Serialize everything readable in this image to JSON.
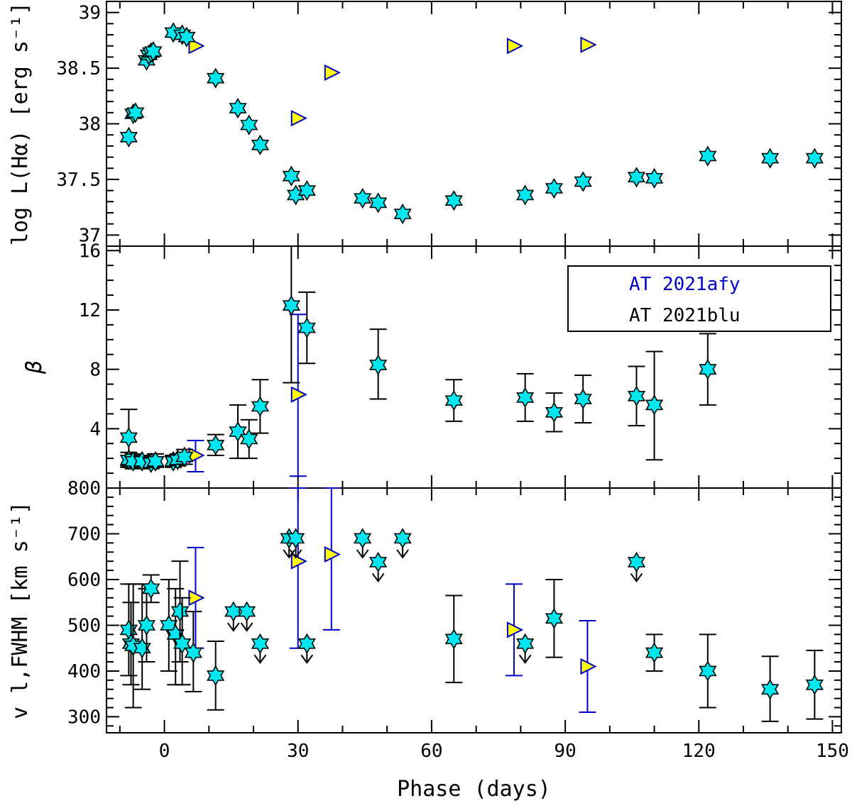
{
  "chart_data": [
    {
      "panel": "top",
      "type": "scatter",
      "ylabel": "log L(Hα) [erg s⁻¹]",
      "ylim": [
        36.9,
        39.1
      ],
      "yticks": [
        37,
        37.5,
        38,
        38.5,
        39
      ],
      "ytick_labels": [
        "37",
        "37.5",
        "38",
        "38.5",
        "39"
      ],
      "series": [
        {
          "name": "AT 2021afy",
          "marker": "triangle-right",
          "points": [
            [
              7,
              38.7
            ],
            [
              30,
              38.05
            ],
            [
              37.5,
              38.46
            ],
            [
              78.5,
              38.7
            ],
            [
              95,
              38.71
            ]
          ]
        },
        {
          "name": "AT 2021blu",
          "marker": "star",
          "points": [
            [
              -8,
              37.88
            ],
            [
              -7,
              38.09
            ],
            [
              -6.5,
              38.1
            ],
            [
              -4,
              38.57
            ],
            [
              -3.5,
              38.62
            ],
            [
              -3,
              38.64
            ],
            [
              -2.5,
              38.65
            ],
            [
              2,
              38.82
            ],
            [
              4,
              38.8
            ],
            [
              5,
              38.78
            ],
            [
              11.5,
              38.41
            ],
            [
              16.5,
              38.14
            ],
            [
              19,
              37.99
            ],
            [
              21.5,
              37.81
            ],
            [
              28.5,
              37.53
            ],
            [
              29.5,
              37.36
            ],
            [
              32,
              37.4
            ],
            [
              44.5,
              37.33
            ],
            [
              48,
              37.29
            ],
            [
              53.5,
              37.19
            ],
            [
              65,
              37.31
            ],
            [
              81,
              37.36
            ],
            [
              87.5,
              37.42
            ],
            [
              94,
              37.48
            ],
            [
              106,
              37.52
            ],
            [
              110,
              37.51
            ],
            [
              122,
              37.71
            ],
            [
              136,
              37.69
            ],
            [
              146,
              37.69
            ]
          ]
        }
      ]
    },
    {
      "panel": "middle",
      "type": "scatter",
      "ylabel": "β",
      "ylim": [
        0,
        16.3
      ],
      "yticks": [
        4,
        8,
        12,
        16
      ],
      "ytick_labels": [
        "4",
        "8",
        "12",
        "16"
      ],
      "series": [
        {
          "name": "AT 2021afy",
          "marker": "triangle-right",
          "points": [
            [
              7,
              2.2,
              1.1,
              3.2
            ],
            [
              30,
              6.3,
              0.8,
              11.7
            ]
          ]
        },
        {
          "name": "AT 2021blu",
          "marker": "star",
          "points": [
            [
              -8,
              3.4,
              1.5,
              5.3
            ],
            [
              -8,
              1.9,
              1.4,
              2.4
            ],
            [
              -7,
              1.8,
              1.3,
              2.3
            ],
            [
              -5,
              1.8,
              1.4,
              2.2
            ],
            [
              -3,
              1.7,
              1.3,
              2.1
            ],
            [
              -2,
              1.8,
              1.4,
              2.3
            ],
            [
              2,
              1.8,
              1.4,
              2.2
            ],
            [
              3,
              1.9,
              1.5,
              2.3
            ],
            [
              4.5,
              2.1,
              1.6,
              2.6
            ],
            [
              11.5,
              2.9,
              2.2,
              3.6
            ],
            [
              16.5,
              3.8,
              2.0,
              5.6
            ],
            [
              19,
              3.3,
              2.0,
              4.6
            ],
            [
              21.5,
              5.5,
              3.7,
              7.3
            ],
            [
              28.5,
              12.3,
              7.1,
              17.5
            ],
            [
              32,
              10.8,
              8.4,
              13.2
            ],
            [
              48,
              8.3,
              6.0,
              10.7
            ],
            [
              65,
              5.9,
              4.5,
              7.3
            ],
            [
              81,
              6.1,
              4.5,
              7.7
            ],
            [
              87.5,
              5.1,
              3.8,
              6.4
            ],
            [
              94,
              6.0,
              4.4,
              7.6
            ],
            [
              106,
              6.2,
              4.2,
              8.2
            ],
            [
              110,
              5.6,
              1.9,
              9.2
            ],
            [
              122,
              8.0,
              5.6,
              10.4
            ]
          ]
        }
      ],
      "legend": {
        "position": "top-right",
        "entries": [
          "AT 2021afy",
          "AT 2021blu"
        ]
      }
    },
    {
      "panel": "bottom",
      "type": "scatter",
      "xlabel": "Phase (days)",
      "ylabel": "v l,FWHM [km s⁻¹]",
      "ylim": [
        265,
        800
      ],
      "yticks": [
        300,
        400,
        500,
        600,
        700,
        800
      ],
      "ytick_labels": [
        "300",
        "400",
        "500",
        "600",
        "700",
        "800"
      ],
      "xlim": [
        -13,
        152
      ],
      "xticks": [
        0,
        30,
        60,
        90,
        120,
        150
      ],
      "xtick_labels": [
        "0",
        "30",
        "60",
        "90",
        "120",
        "150"
      ],
      "series": [
        {
          "name": "AT 2021afy",
          "marker": "triangle-right",
          "points": [
            [
              7,
              560,
              450,
              670
            ],
            [
              30,
              640,
              450,
              830
            ],
            [
              37.5,
              655,
              490,
              820
            ],
            [
              78.5,
              490,
              390,
              590
            ],
            [
              95,
              410,
              310,
              510
            ]
          ]
        },
        {
          "name": "AT 2021blu",
          "marker": "star",
          "points": [
            [
              -8,
              490,
              390,
              590
            ],
            [
              -7.5,
              460,
              370,
              550
            ],
            [
              -7,
              455,
              320,
              590
            ],
            [
              -5,
              450,
              360,
              590
            ],
            [
              -4,
              500,
              420,
              580
            ],
            [
              -3,
              580,
              550,
              610
            ],
            [
              1,
              500,
              400,
              600
            ],
            [
              2.5,
              480,
              370,
              580
            ],
            [
              3.5,
              530,
              420,
              640
            ],
            [
              4,
              460,
              370,
              560
            ],
            [
              6.5,
              440,
              355,
              530
            ],
            [
              11.5,
              390,
              315,
              465
            ],
            [
              65,
              470,
              375,
              565
            ],
            [
              87.5,
              515,
              430,
              600
            ],
            [
              110,
              440,
              400,
              480
            ],
            [
              122,
              400,
              320,
              480
            ],
            [
              136,
              360,
              290,
              432
            ],
            [
              146,
              370,
              295,
              445
            ]
          ]
        },
        {
          "name": "AT 2021blu upper limits",
          "marker": "star-arrow",
          "points": [
            [
              28,
              690
            ],
            [
              29.5,
              690
            ],
            [
              32,
              460
            ],
            [
              44.5,
              690
            ],
            [
              48,
              638
            ],
            [
              53.5,
              690
            ],
            [
              15.5,
              530
            ],
            [
              18.5,
              530
            ],
            [
              21.5,
              460
            ],
            [
              81,
              460
            ],
            [
              106,
              638
            ]
          ]
        }
      ]
    }
  ],
  "colors": {
    "star_fill": "#00e6ee",
    "triangle_fill": "#ffff00",
    "afy_blue": "#0000cc",
    "axis": "#000000"
  }
}
